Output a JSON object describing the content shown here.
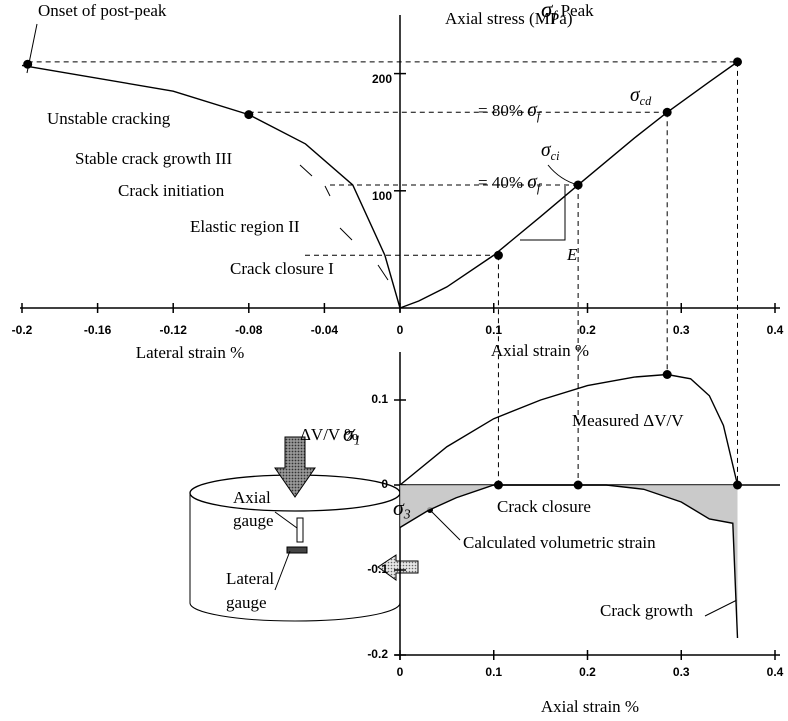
{
  "chart_data": [
    {
      "type": "line",
      "y_label": "Axial stress (MPa)",
      "x_label": "Axial strain %",
      "x2_label": "Lateral strain %",
      "xlim": [
        0,
        0.4
      ],
      "x2lim": [
        -0.2,
        0
      ],
      "ylim": [
        0,
        250
      ],
      "xticks": [
        0,
        0.1,
        0.2,
        0.3,
        0.4
      ],
      "x2ticks": [
        -0.2,
        -0.16,
        -0.12,
        -0.08,
        -0.04
      ],
      "yticks": [
        100,
        200
      ],
      "series": [
        {
          "color": "#000000",
          "x": [
            0,
            0.02,
            0.05,
            0.1,
            0.15,
            0.19,
            0.25,
            0.285,
            0.33,
            0.36
          ],
          "values": [
            0,
            6,
            18,
            45,
            78,
            105,
            145,
            167,
            193,
            210
          ]
        },
        {
          "color": "#000000",
          "axis": "x2",
          "x": [
            0,
            -0.008,
            -0.025,
            -0.05,
            -0.08,
            -0.12,
            -0.2
          ],
          "values": [
            0,
            45,
            105,
            140,
            165,
            185,
            207
          ]
        },
        {
          "style": "markers",
          "color": "#000000",
          "x": [
            0.105,
            0.19,
            0.285,
            0.36
          ],
          "values": [
            45,
            105,
            167,
            210
          ]
        },
        {
          "style": "markers",
          "color": "#000000",
          "axis": "x2",
          "x": [
            -0.08,
            -0.197
          ],
          "values": [
            165,
            208
          ]
        }
      ],
      "annotations": [
        "Onset of post-peak",
        "Unstable cracking",
        "Stable crack growth III",
        "Crack initiation",
        "Elastic region II",
        "Crack closure I",
        {
          "pre": "= 80% ",
          "symbol": "σ",
          "sub": "f"
        },
        {
          "symbol": "σ",
          "sub": "cd"
        },
        {
          "symbol": "σ",
          "sub": "ci"
        },
        {
          "pre": "= 40% ",
          "symbol": "σ",
          "sub": "f"
        },
        {
          "symbol": "σ",
          "sub": "f",
          "post": " Peak"
        },
        "E"
      ]
    },
    {
      "type": "line",
      "y_label": "ΔV/V %",
      "x_label": "Axial strain %",
      "xlim": [
        0,
        0.4
      ],
      "ylim": [
        -0.2,
        0.15
      ],
      "xticks": [
        0,
        0.1,
        0.2,
        0.3,
        0.4
      ],
      "yticks": [
        -0.2,
        -0.1,
        0,
        0.1
      ],
      "series": [
        {
          "color": "#000000",
          "x": [
            0,
            0.05,
            0.1,
            0.15,
            0.2,
            0.25,
            0.285,
            0.31,
            0.33,
            0.345,
            0.36
          ],
          "values": [
            0,
            0.045,
            0.078,
            0.1,
            0.117,
            0.127,
            0.13,
            0.125,
            0.105,
            0.07,
            0
          ]
        },
        {
          "color": "#000000",
          "fill": "#bdbdbd",
          "x": [
            0,
            0.03,
            0.06,
            0.1,
            0.22,
            0.26,
            0.3,
            0.33,
            0.355,
            0.36
          ],
          "values": [
            -0.05,
            -0.03,
            -0.015,
            0,
            0,
            -0.005,
            -0.02,
            -0.04,
            -0.045,
            -0.18
          ]
        },
        {
          "style": "markers",
          "color": "#000000",
          "x": [
            0.105,
            0.19,
            0.285,
            0.36
          ],
          "values": [
            0,
            0,
            0.13,
            0
          ]
        }
      ],
      "annotations": [
        "Measured ΔV/V",
        "Crack closure",
        "Calculated volumetric strain",
        "Crack growth"
      ]
    }
  ],
  "specimen": {
    "sigma1": {
      "symbol": "σ",
      "sub": "1"
    },
    "sigma3": {
      "symbol": "σ",
      "sub": "3"
    },
    "axial_gauge": [
      "Axial",
      "gauge"
    ],
    "lateral_gauge": [
      "Lateral",
      "gauge"
    ]
  }
}
